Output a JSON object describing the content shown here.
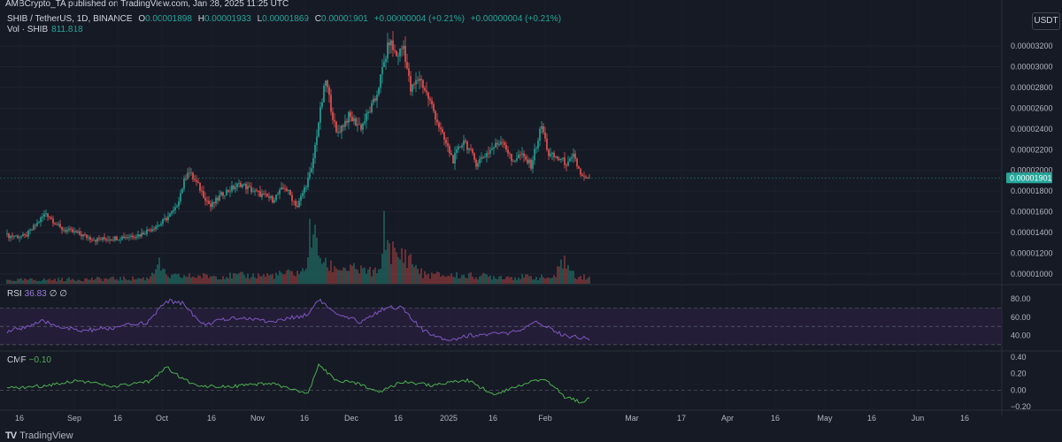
{
  "header": {
    "caption": "AMBCrypto_TA published on TradingView.com, Jan 28, 2025 11:25 UTC",
    "symbol": "SHIB / TetherUS, 1D, BINANCE",
    "open_label": "O",
    "open": "0.00001898",
    "high_label": "H",
    "high": "0.00001933",
    "low_label": "L",
    "low": "0.00001869",
    "close_label": "C",
    "close": "0.00001901",
    "change": "+0.00000004 (+0.21%)",
    "change2": "+0.00000004 (+0.21%)",
    "vol_label": "Vol · SHIB",
    "vol_value": "811.818",
    "quote_currency": "USDT"
  },
  "rsi_panel": {
    "label": "RSI",
    "value": "36.83",
    "extra": "∅ ∅"
  },
  "cmf_panel": {
    "label": "CMF",
    "value": "−0.10"
  },
  "footer": {
    "logo": "TV",
    "brand": "TradingView"
  },
  "colors": {
    "up": "#26a69a",
    "down": "#ef5350",
    "rsi": "#7e57c2",
    "rsi_band": "#2a1f3f",
    "cmf": "#4caf50",
    "last_price": "#26a69a"
  },
  "chart_data": {
    "type": "candlestick",
    "price_axis": {
      "ticks": [
        "0.00003200",
        "0.00003000",
        "0.00002800",
        "0.00002600",
        "0.00002400",
        "0.00002200",
        "0.00002000",
        "0.00001800",
        "0.00001600",
        "0.00001400",
        "0.00001200",
        "0.00001000"
      ],
      "values": [
        3.2e-05,
        3e-05,
        2.8e-05,
        2.6e-05,
        2.4e-05,
        2.2e-05,
        2e-05,
        1.8e-05,
        1.6e-05,
        1.4e-05,
        1.2e-05,
        1e-05
      ],
      "last_price_label": "0.00001901"
    },
    "time_axis": {
      "labels": [
        "16",
        "Sep",
        "16",
        "Oct",
        "16",
        "Nov",
        "16",
        "Dec",
        "16",
        "2025",
        "16",
        "Feb",
        "Mar",
        "17",
        "Apr",
        "16",
        "May",
        "16",
        "Jun",
        "16"
      ]
    },
    "keyframes_close": [
      [
        0,
        1.37e-05
      ],
      [
        10,
        1.36e-05
      ],
      [
        15,
        1.45e-05
      ],
      [
        22,
        1.59e-05
      ],
      [
        30,
        1.44e-05
      ],
      [
        40,
        1.39e-05
      ],
      [
        50,
        1.33e-05
      ],
      [
        62,
        1.35e-05
      ],
      [
        75,
        1.38e-05
      ],
      [
        87,
        1.49e-05
      ],
      [
        95,
        1.62e-05
      ],
      [
        102,
        2e-05
      ],
      [
        108,
        1.85e-05
      ],
      [
        115,
        1.65e-05
      ],
      [
        122,
        1.78e-05
      ],
      [
        132,
        1.87e-05
      ],
      [
        140,
        1.79e-05
      ],
      [
        150,
        1.72e-05
      ],
      [
        157,
        1.84e-05
      ],
      [
        164,
        1.65e-05
      ],
      [
        172,
        2e-05
      ],
      [
        176,
        2.47e-05
      ],
      [
        180,
        2.87e-05
      ],
      [
        186,
        2.35e-05
      ],
      [
        193,
        2.52e-05
      ],
      [
        200,
        2.42e-05
      ],
      [
        208,
        2.68e-05
      ],
      [
        216,
        3.25e-05
      ],
      [
        220,
        3.1e-05
      ],
      [
        224,
        3.2e-05
      ],
      [
        228,
        2.77e-05
      ],
      [
        233,
        2.9e-05
      ],
      [
        240,
        2.62e-05
      ],
      [
        246,
        2.33e-05
      ],
      [
        252,
        2.1e-05
      ],
      [
        258,
        2.3e-05
      ],
      [
        265,
        2.07e-05
      ],
      [
        272,
        2.18e-05
      ],
      [
        280,
        2.3e-05
      ],
      [
        285,
        2.09e-05
      ],
      [
        290,
        2.15e-05
      ],
      [
        296,
        2.05e-05
      ],
      [
        302,
        2.43e-05
      ],
      [
        306,
        2.15e-05
      ],
      [
        312,
        2.11e-05
      ],
      [
        317,
        2.06e-05
      ],
      [
        320,
        2.13e-05
      ],
      [
        325,
        1.93e-05
      ],
      [
        329,
        1.901e-05
      ]
    ],
    "volume_keyframes": [
      [
        0,
        0.06
      ],
      [
        80,
        0.09
      ],
      [
        85,
        0.36
      ],
      [
        90,
        0.12
      ],
      [
        150,
        0.14
      ],
      [
        168,
        0.2
      ],
      [
        172,
        0.95
      ],
      [
        175,
        0.6
      ],
      [
        180,
        0.3
      ],
      [
        210,
        0.18
      ],
      [
        213,
        0.85
      ],
      [
        220,
        0.4
      ],
      [
        225,
        0.5
      ],
      [
        235,
        0.15
      ],
      [
        310,
        0.1
      ],
      [
        313,
        0.45
      ],
      [
        320,
        0.15
      ],
      [
        329,
        0.1
      ]
    ],
    "rsi": {
      "ticks": [
        "80.00",
        "60.00",
        "40.00"
      ],
      "values": [
        80,
        60,
        40
      ],
      "bands": [
        70,
        50,
        30
      ],
      "keyframes": [
        [
          0,
          44
        ],
        [
          20,
          55
        ],
        [
          40,
          45
        ],
        [
          60,
          48
        ],
        [
          80,
          55
        ],
        [
          90,
          78
        ],
        [
          100,
          75
        ],
        [
          110,
          52
        ],
        [
          130,
          60
        ],
        [
          150,
          55
        ],
        [
          170,
          63
        ],
        [
          176,
          80
        ],
        [
          186,
          62
        ],
        [
          200,
          55
        ],
        [
          215,
          72
        ],
        [
          223,
          70
        ],
        [
          235,
          45
        ],
        [
          250,
          35
        ],
        [
          260,
          40
        ],
        [
          280,
          42
        ],
        [
          290,
          45
        ],
        [
          300,
          55
        ],
        [
          315,
          40
        ],
        [
          329,
          37
        ]
      ]
    },
    "cmf": {
      "ticks": [
        "0.40",
        "0.20",
        "0.00",
        "−0.20"
      ],
      "values": [
        0.4,
        0.2,
        0,
        -0.2
      ],
      "keyframes": [
        [
          0,
          0.02
        ],
        [
          20,
          0.05
        ],
        [
          40,
          0.12
        ],
        [
          60,
          0.04
        ],
        [
          80,
          0.1
        ],
        [
          90,
          0.28
        ],
        [
          100,
          0.12
        ],
        [
          110,
          0.05
        ],
        [
          130,
          0.05
        ],
        [
          150,
          0.08
        ],
        [
          170,
          -0.05
        ],
        [
          176,
          0.3
        ],
        [
          186,
          0.12
        ],
        [
          200,
          0.07
        ],
        [
          210,
          -0.02
        ],
        [
          223,
          0.1
        ],
        [
          240,
          0.06
        ],
        [
          260,
          0.12
        ],
        [
          275,
          -0.05
        ],
        [
          295,
          0.1
        ],
        [
          305,
          0.12
        ],
        [
          315,
          -0.08
        ],
        [
          325,
          -0.15
        ],
        [
          329,
          -0.1
        ]
      ]
    }
  }
}
